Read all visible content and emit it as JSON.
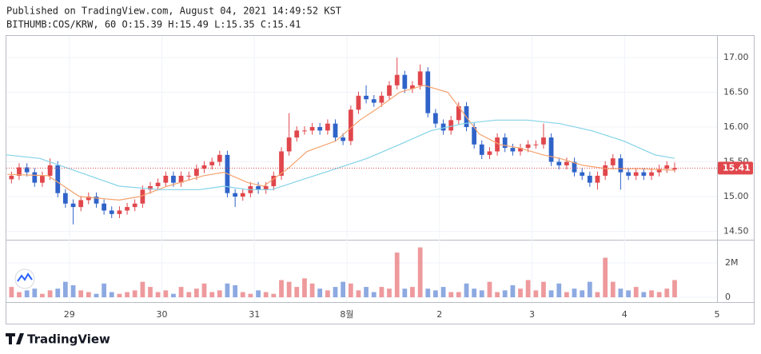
{
  "chart_data": {
    "type": "candlestick",
    "title": "Published on TradingView.com, August 04, 2021 14:49:52 KST",
    "subtitle": "BITHUMB:COS/KRW, 60 O:15.39 H:15.49 L:15.35 C:15.41",
    "footer": "TradingView",
    "up_color": "#e0474c",
    "down_color": "#2f63c9",
    "x": [
      -0.625,
      -0.542,
      -0.458,
      -0.375,
      -0.292,
      -0.208,
      -0.125,
      -0.042,
      0.042,
      0.125,
      0.208,
      0.292,
      0.375,
      0.458,
      0.542,
      0.625,
      0.708,
      0.792,
      0.875,
      0.958,
      1.042,
      1.125,
      1.208,
      1.292,
      1.375,
      1.458,
      1.542,
      1.625,
      1.708,
      1.792,
      1.875,
      1.958,
      2.042,
      2.125,
      2.208,
      2.292,
      2.375,
      2.458,
      2.542,
      2.625,
      2.708,
      2.792,
      2.875,
      2.958,
      3.042,
      3.125,
      3.208,
      3.292,
      3.375,
      3.458,
      3.542,
      3.625,
      3.708,
      3.792,
      3.875,
      3.958,
      4.042,
      4.125,
      4.208,
      4.292,
      4.375,
      4.458,
      4.542,
      4.625,
      4.708,
      4.792,
      4.875,
      4.958,
      5.042,
      5.125,
      5.208,
      5.292,
      5.375,
      5.458,
      5.542,
      5.625,
      5.708,
      5.792,
      5.875,
      5.958,
      6.042,
      6.125,
      6.208,
      6.292,
      6.375,
      6.458,
      6.542
    ],
    "open": [
      15.25,
      15.3,
      15.42,
      15.35,
      15.2,
      15.3,
      15.45,
      15.05,
      14.9,
      14.85,
      14.95,
      15.0,
      14.9,
      14.8,
      14.75,
      14.8,
      14.85,
      14.9,
      15.1,
      15.15,
      15.2,
      15.3,
      15.2,
      15.3,
      15.3,
      15.4,
      15.45,
      15.5,
      15.6,
      15.05,
      15.0,
      15.05,
      15.15,
      15.1,
      15.15,
      15.3,
      15.65,
      15.85,
      15.95,
      15.95,
      16.0,
      15.95,
      16.05,
      15.85,
      15.8,
      16.25,
      16.45,
      16.4,
      16.35,
      16.45,
      16.6,
      16.75,
      16.55,
      16.6,
      16.8,
      16.2,
      16.05,
      15.95,
      16.1,
      16.3,
      16.0,
      15.75,
      15.6,
      15.65,
      15.85,
      15.7,
      15.65,
      15.7,
      15.75,
      15.75,
      15.85,
      15.5,
      15.45,
      15.5,
      15.35,
      15.3,
      15.2,
      15.3,
      15.45,
      15.55,
      15.35,
      15.3,
      15.35,
      15.3,
      15.35,
      15.4,
      15.39
    ],
    "high": [
      15.36,
      15.48,
      15.48,
      15.41,
      15.36,
      15.55,
      15.51,
      15.11,
      14.96,
      15.01,
      15.06,
      15.06,
      14.96,
      14.86,
      14.86,
      14.91,
      14.96,
      15.16,
      15.21,
      15.26,
      15.36,
      15.36,
      15.36,
      15.36,
      15.46,
      15.51,
      15.56,
      15.66,
      15.66,
      15.11,
      15.11,
      15.21,
      15.21,
      15.21,
      15.36,
      15.71,
      16.2,
      16.01,
      16.01,
      16.06,
      16.06,
      16.11,
      16.11,
      15.91,
      16.31,
      16.51,
      16.6,
      16.46,
      16.51,
      16.66,
      17.0,
      16.81,
      16.66,
      16.9,
      16.86,
      16.26,
      16.11,
      16.16,
      16.36,
      16.36,
      16.06,
      15.81,
      15.71,
      15.91,
      15.91,
      15.76,
      15.76,
      15.81,
      15.81,
      16.05,
      15.91,
      15.56,
      15.56,
      15.56,
      15.41,
      15.36,
      15.36,
      15.51,
      15.61,
      15.61,
      15.41,
      15.41,
      15.41,
      15.41,
      15.46,
      15.51,
      15.49
    ],
    "low": [
      15.19,
      15.24,
      15.29,
      15.14,
      15.14,
      15.24,
      14.99,
      14.84,
      14.6,
      14.79,
      14.89,
      14.84,
      14.74,
      14.69,
      14.69,
      14.74,
      14.79,
      14.84,
      15.04,
      15.09,
      15.14,
      15.14,
      15.14,
      15.24,
      15.24,
      15.34,
      15.39,
      15.44,
      14.99,
      14.85,
      14.94,
      14.99,
      15.04,
      15.04,
      15.09,
      15.24,
      15.59,
      15.79,
      15.89,
      15.89,
      15.89,
      15.89,
      15.79,
      15.74,
      15.74,
      16.19,
      16.34,
      16.29,
      16.29,
      16.39,
      16.54,
      16.49,
      16.49,
      16.54,
      16.14,
      15.99,
      15.89,
      15.89,
      16.04,
      15.94,
      15.69,
      15.54,
      15.54,
      15.59,
      15.64,
      15.59,
      15.59,
      15.64,
      15.69,
      15.69,
      15.44,
      15.39,
      15.39,
      15.29,
      15.24,
      15.14,
      15.1,
      15.24,
      15.39,
      15.1,
      15.24,
      15.24,
      15.24,
      15.24,
      15.29,
      15.34,
      15.35
    ],
    "close": [
      15.3,
      15.42,
      15.35,
      15.2,
      15.3,
      15.45,
      15.05,
      14.9,
      14.85,
      14.95,
      15.0,
      14.9,
      14.8,
      14.75,
      14.8,
      14.85,
      14.9,
      15.1,
      15.15,
      15.2,
      15.3,
      15.2,
      15.3,
      15.3,
      15.4,
      15.45,
      15.5,
      15.6,
      15.05,
      15.0,
      15.05,
      15.15,
      15.1,
      15.15,
      15.3,
      15.65,
      15.85,
      15.95,
      15.95,
      16.0,
      15.95,
      16.05,
      15.85,
      15.8,
      16.25,
      16.45,
      16.4,
      16.35,
      16.45,
      16.6,
      16.75,
      16.55,
      16.6,
      16.8,
      16.2,
      16.05,
      15.95,
      16.1,
      16.3,
      16.0,
      15.75,
      15.6,
      15.65,
      15.85,
      15.7,
      15.65,
      15.7,
      15.75,
      15.75,
      15.85,
      15.5,
      15.45,
      15.5,
      15.35,
      15.3,
      15.2,
      15.3,
      15.45,
      15.55,
      15.35,
      15.3,
      15.35,
      15.3,
      15.35,
      15.4,
      15.45,
      15.41
    ],
    "volume": [
      0.6,
      0.3,
      0.4,
      0.5,
      0.2,
      0.4,
      0.5,
      0.9,
      0.7,
      0.4,
      0.3,
      0.2,
      0.8,
      0.3,
      0.2,
      0.3,
      0.4,
      0.9,
      0.6,
      0.3,
      0.4,
      0.2,
      0.6,
      0.3,
      0.5,
      0.8,
      0.3,
      0.4,
      0.8,
      0.7,
      0.3,
      0.2,
      0.4,
      0.3,
      0.2,
      1.0,
      0.9,
      0.6,
      1.1,
      0.8,
      0.5,
      0.4,
      0.6,
      0.9,
      0.8,
      0.4,
      0.6,
      0.3,
      0.6,
      0.5,
      2.6,
      0.5,
      0.6,
      2.9,
      0.5,
      0.4,
      0.6,
      0.3,
      0.3,
      0.8,
      0.5,
      0.4,
      0.9,
      0.3,
      0.4,
      0.7,
      0.5,
      1.0,
      0.4,
      0.9,
      0.4,
      0.8,
      0.3,
      0.5,
      0.4,
      0.9,
      0.3,
      2.3,
      0.9,
      0.5,
      0.4,
      0.6,
      0.3,
      0.4,
      0.3,
      0.5,
      1.0
    ],
    "series": [
      {
        "color": "#f5a26d",
        "x": [
          -0.67,
          -0.23,
          0.11,
          0.54,
          0.76,
          1.06,
          1.45,
          1.67,
          1.93,
          2.1,
          2.36,
          2.57,
          2.88,
          3.14,
          3.31,
          3.57,
          3.83,
          4.09,
          4.26,
          4.43,
          4.65,
          4.86,
          5.12,
          5.3,
          5.55,
          5.81,
          6.16,
          6.54
        ],
        "values": [
          15.32,
          15.3,
          15.0,
          14.95,
          15.0,
          15.15,
          15.3,
          15.35,
          15.2,
          15.15,
          15.4,
          15.65,
          15.8,
          16.1,
          16.25,
          16.5,
          16.6,
          16.5,
          16.2,
          15.9,
          15.75,
          15.7,
          15.6,
          15.55,
          15.45,
          15.4,
          15.4,
          15.38
        ]
      },
      {
        "color": "#84d3e8",
        "x": [
          -0.68,
          -0.32,
          0.11,
          0.54,
          0.98,
          1.41,
          1.67,
          1.93,
          2.19,
          2.53,
          2.88,
          3.22,
          3.57,
          3.91,
          4.26,
          4.61,
          4.95,
          5.3,
          5.64,
          5.99,
          6.33,
          6.54
        ],
        "values": [
          15.6,
          15.55,
          15.35,
          15.15,
          15.1,
          15.1,
          15.15,
          15.1,
          15.1,
          15.25,
          15.4,
          15.55,
          15.75,
          15.95,
          16.05,
          16.1,
          16.1,
          16.05,
          15.95,
          15.8,
          15.6,
          15.55
        ]
      }
    ],
    "xlim": [
      -0.68,
      7.0
    ],
    "xticks": [
      {
        "value": 0,
        "label": "29"
      },
      {
        "value": 1,
        "label": "30"
      },
      {
        "value": 2,
        "label": "31"
      },
      {
        "value": 3,
        "label": "8월"
      },
      {
        "value": 4,
        "label": "2"
      },
      {
        "value": 5,
        "label": "3"
      },
      {
        "value": 6,
        "label": "4"
      },
      {
        "value": 7,
        "label": "5"
      }
    ],
    "ylim": [
      14.38,
      17.31
    ],
    "yticks": [
      {
        "value": 14.5,
        "label": "14.50"
      },
      {
        "value": 15,
        "label": "15.00"
      },
      {
        "value": 15.5,
        "label": "15.50"
      },
      {
        "value": 16,
        "label": "16.00"
      },
      {
        "value": 16.5,
        "label": "16.50"
      },
      {
        "value": 17,
        "label": "17.00"
      }
    ],
    "volume_ylim": [
      -0.28,
      3.3
    ],
    "volume_yticks": [
      0,
      {
        "value": 2,
        "label": "2M"
      }
    ],
    "grid": true
  }
}
